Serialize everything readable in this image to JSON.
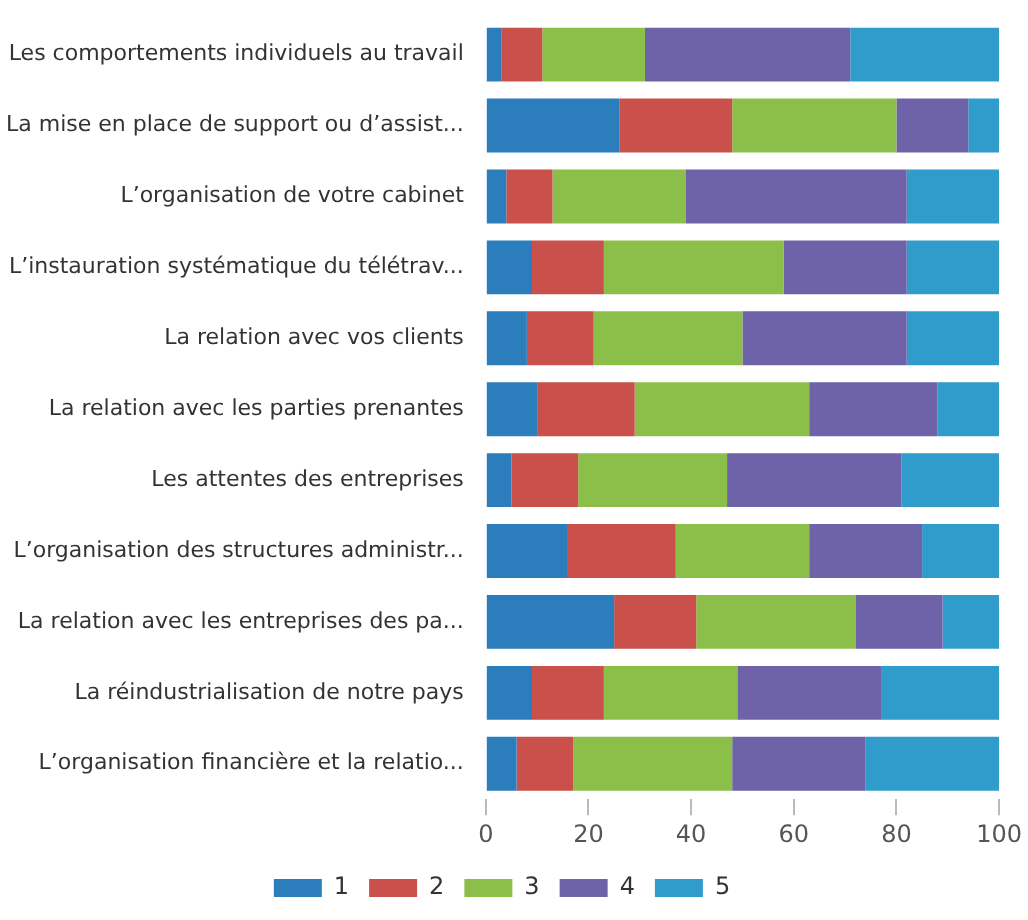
{
  "chart_data": {
    "type": "bar",
    "orientation": "horizontal",
    "stacked": true,
    "categories": [
      "Les comportements individuels au travail",
      "La mise en place de support ou d’assist...",
      "L’organisation de votre cabinet",
      "L’instauration systématique du télétrav...",
      "La relation avec vos clients",
      "La relation avec les parties prenantes",
      "Les attentes des entreprises",
      "L’organisation des structures administr...",
      "La relation avec les entreprises des pa...",
      "La réindustrialisation de notre pays",
      "L’organisation financière et la relatio..."
    ],
    "series": [
      {
        "name": "1",
        "color": "#2b7dbb",
        "values": [
          3,
          26,
          4,
          9,
          8,
          10,
          5,
          16,
          25,
          9,
          6
        ]
      },
      {
        "name": "2",
        "color": "#c9504b",
        "values": [
          8,
          22,
          9,
          14,
          13,
          19,
          13,
          21,
          16,
          14,
          11
        ]
      },
      {
        "name": "3",
        "color": "#8cbf4a",
        "values": [
          20,
          32,
          26,
          35,
          29,
          34,
          29,
          26,
          31,
          26,
          31
        ]
      },
      {
        "name": "4",
        "color": "#6e62a8",
        "values": [
          40,
          14,
          43,
          24,
          32,
          25,
          34,
          22,
          17,
          28,
          26
        ]
      },
      {
        "name": "5",
        "color": "#2f9ccc",
        "values": [
          29,
          6,
          18,
          18,
          18,
          12,
          19,
          15,
          11,
          23,
          26
        ]
      }
    ],
    "xlim": [
      0,
      100
    ],
    "xticks": [
      0,
      20,
      40,
      60,
      80,
      100
    ],
    "grid": false,
    "legend": "bottom"
  }
}
